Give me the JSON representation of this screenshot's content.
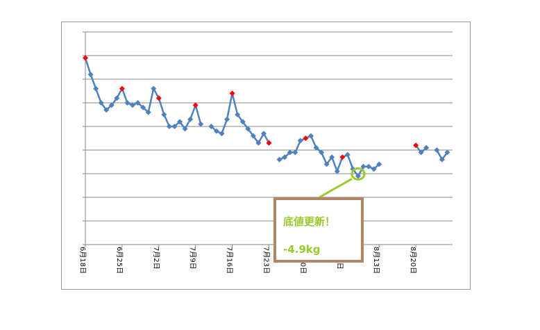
{
  "chart_data": {
    "type": "line",
    "title": "",
    "xlabel": "",
    "ylabel": "",
    "x_tick_labels": [
      "6月18日",
      "6月25日",
      "7月2日",
      "7月9日",
      "7月16日",
      "7月23日",
      "7月30日",
      "8月6日",
      "8月13日",
      "8月20日"
    ],
    "y_gridlines": 9,
    "y_ticks_labeled": false,
    "grid": "horizontal",
    "legend": "none",
    "series": [
      {
        "values": [
          {
            "x": 0,
            "y": 7.9
          },
          {
            "x": 1,
            "y": 7.2
          },
          {
            "x": 2,
            "y": 6.6
          },
          {
            "x": 3,
            "y": 6.0
          },
          {
            "x": 4,
            "y": 5.7
          },
          {
            "x": 5,
            "y": 5.9
          },
          {
            "x": 6,
            "y": 6.2
          },
          {
            "x": 7,
            "y": 6.6
          },
          {
            "x": 8,
            "y": 6.0
          },
          {
            "x": 9,
            "y": 5.9
          },
          {
            "x": 10,
            "y": 6.0
          },
          {
            "x": 11,
            "y": 5.8
          },
          {
            "x": 12,
            "y": 5.6
          },
          {
            "x": 13,
            "y": 6.6
          },
          {
            "x": 14,
            "y": 6.2
          },
          {
            "x": 15,
            "y": 5.5
          },
          {
            "x": 16,
            "y": 5.0
          },
          {
            "x": 17,
            "y": 5.0
          },
          {
            "x": 18,
            "y": 5.2
          },
          {
            "x": 19,
            "y": 4.9
          },
          {
            "x": 20,
            "y": 5.3
          },
          {
            "x": 21,
            "y": 5.9
          },
          {
            "x": 22,
            "y": 5.1
          },
          {
            "x": 24,
            "y": 5.0
          },
          {
            "x": 25,
            "y": 4.8
          },
          {
            "x": 26,
            "y": 4.7
          },
          {
            "x": 27,
            "y": 5.3
          },
          {
            "x": 28,
            "y": 6.4
          },
          {
            "x": 29,
            "y": 5.5
          },
          {
            "x": 30,
            "y": 5.2
          },
          {
            "x": 31,
            "y": 4.9
          },
          {
            "x": 32,
            "y": 4.6
          },
          {
            "x": 33,
            "y": 4.3
          },
          {
            "x": 34,
            "y": 4.7
          },
          {
            "x": 35,
            "y": 4.3
          },
          {
            "x": 37,
            "y": 3.6
          },
          {
            "x": 38,
            "y": 3.7
          },
          {
            "x": 39,
            "y": 3.9
          },
          {
            "x": 40,
            "y": 3.9
          },
          {
            "x": 41,
            "y": 4.4
          },
          {
            "x": 42,
            "y": 4.5
          },
          {
            "x": 43,
            "y": 4.6
          },
          {
            "x": 44,
            "y": 4.1
          },
          {
            "x": 45,
            "y": 3.9
          },
          {
            "x": 46,
            "y": 3.4
          },
          {
            "x": 47,
            "y": 3.7
          },
          {
            "x": 48,
            "y": 3.1
          },
          {
            "x": 49,
            "y": 3.7
          },
          {
            "x": 50,
            "y": 3.8
          },
          {
            "x": 51,
            "y": 3.2
          },
          {
            "x": 52,
            "y": 2.9
          },
          {
            "x": 53,
            "y": 3.3
          },
          {
            "x": 54,
            "y": 3.3
          },
          {
            "x": 55,
            "y": 3.2
          },
          {
            "x": 56,
            "y": 3.4
          },
          {
            "x": 63,
            "y": 4.2
          },
          {
            "x": 64,
            "y": 3.9
          },
          {
            "x": 65,
            "y": 4.1
          },
          {
            "x": 67,
            "y": 4.0
          },
          {
            "x": 68,
            "y": 3.6
          },
          {
            "x": 69,
            "y": 3.9
          }
        ]
      }
    ],
    "highlighted_points_x": [
      0,
      7,
      14,
      21,
      28,
      35,
      42,
      49,
      63
    ],
    "minimum_point_x": 52,
    "xlim": [
      0,
      70
    ],
    "ylim": [
      0,
      9
    ],
    "colors": {
      "line": "#4f81bd",
      "marker": "#4f81bd",
      "highlight_marker": "#ff0000",
      "circle": "#9bc92c",
      "callout_line": "#9bc92c",
      "callout_border": "#b38465",
      "callout_text": "#9bc92c",
      "gridline": "#868686",
      "frame": "#9a9a9a"
    }
  },
  "callout": {
    "title": "底値更新！",
    "value": "-4.9kg"
  }
}
